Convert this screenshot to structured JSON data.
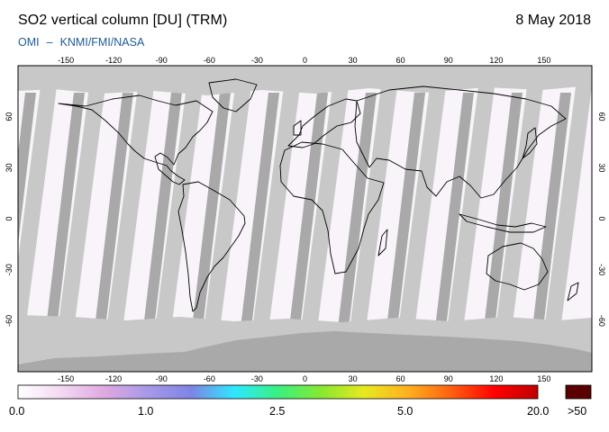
{
  "header": {
    "title": "SO2 vertical column [DU] (TRM)",
    "date": "8 May 2018",
    "credit_a": "OMI",
    "credit_sep": "–",
    "credit_b": "KNMI/FMI/NASA"
  },
  "map": {
    "lon_ticks": [
      "-150",
      "-120",
      "-90",
      "-60",
      "-30",
      "0",
      "30",
      "60",
      "90",
      "120",
      "150"
    ],
    "lat_ticks": [
      "60",
      "30",
      "0",
      "-30",
      "-60"
    ],
    "colors": {
      "no_data": "#c8c8c8",
      "swath_overlap": "#a9a9a9",
      "low_value": "#f8f4fa",
      "coast": "#000000"
    }
  },
  "colorbar": {
    "labels": [
      "0.0",
      "1.0",
      "2.5",
      "5.0",
      "20.0"
    ],
    "over_label": ">50",
    "over_color": "#5a0000",
    "stops": [
      "#ffffff",
      "#f2d9f2",
      "#e0a8e0",
      "#a898e8",
      "#7e84e6",
      "#2ee8ff",
      "#38f080",
      "#88e830",
      "#e8e820",
      "#ffb020",
      "#ff6010",
      "#ff0000",
      "#c00000"
    ]
  }
}
